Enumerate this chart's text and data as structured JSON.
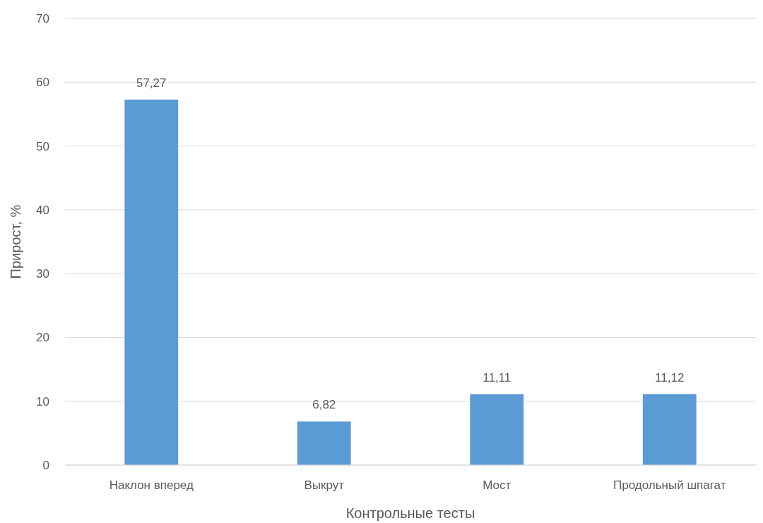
{
  "chart_data": {
    "type": "bar",
    "xlabel": "Контрольные тесты",
    "ylabel": "Прирост, %",
    "categories": [
      "Наклон вперед",
      "Выкрут",
      "Мост",
      "Продольный шпагат"
    ],
    "values": [
      57.27,
      6.82,
      11.11,
      11.12
    ],
    "value_labels": [
      "57,27",
      "6,82",
      "11,11",
      "11,12"
    ],
    "color": "#5b9bd5",
    "ylim": [
      0,
      70
    ],
    "yticks": [
      0,
      10,
      20,
      30,
      40,
      50,
      60,
      70
    ],
    "grid": "y"
  }
}
